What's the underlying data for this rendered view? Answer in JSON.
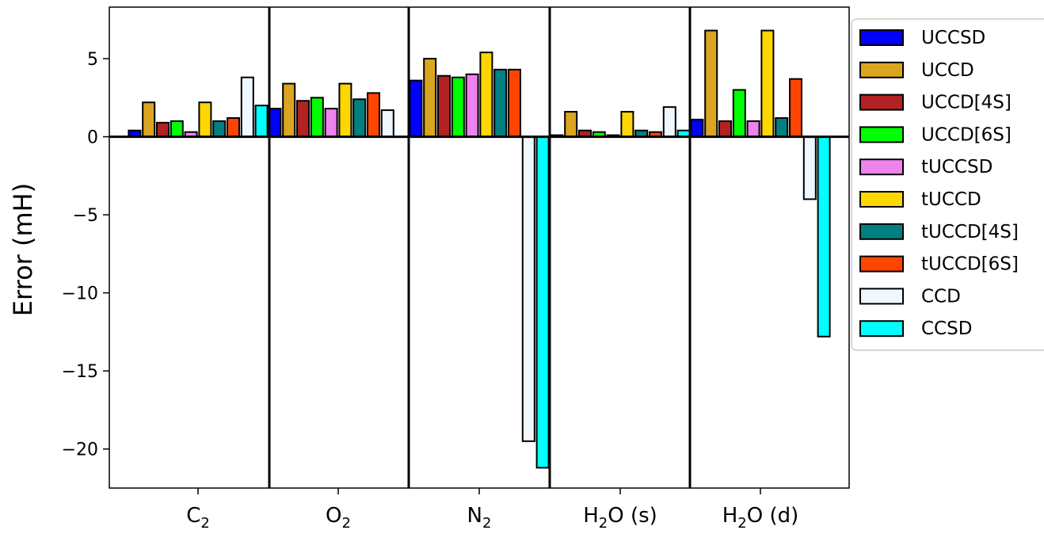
{
  "chart_data": {
    "type": "bar",
    "ylabel": "Error (mH)",
    "xlabel": "",
    "ylim": [
      -22.5,
      8.3
    ],
    "yticks": [
      5,
      0,
      -5,
      -10,
      -15,
      -20
    ],
    "ytick_labels": [
      "5",
      "0",
      "−5",
      "−10",
      "−15",
      "−20"
    ],
    "categories": [
      {
        "base": "C",
        "sub": "2",
        "suffix": ""
      },
      {
        "base": "O",
        "sub": "2",
        "suffix": ""
      },
      {
        "base": "N",
        "sub": "2",
        "suffix": ""
      },
      {
        "base": "H",
        "sub": "2",
        "suffix": "O (s)"
      },
      {
        "base": "H",
        "sub": "2",
        "suffix": "O (d)"
      }
    ],
    "series": [
      {
        "name": "UCCSD",
        "color": "#0000ff",
        "values": [
          0.4,
          1.8,
          3.6,
          0.1,
          1.1
        ]
      },
      {
        "name": "UCCD",
        "color": "#daa520",
        "values": [
          2.2,
          3.4,
          5.0,
          1.6,
          6.8
        ]
      },
      {
        "name": "UCCD[4S]",
        "color": "#b22222",
        "values": [
          0.9,
          2.3,
          3.9,
          0.4,
          1.0
        ]
      },
      {
        "name": "UCCD[6S]",
        "color": "#00ff00",
        "values": [
          1.0,
          2.5,
          3.8,
          0.3,
          3.0
        ]
      },
      {
        "name": "tUCCSD",
        "color": "#ee82ee",
        "values": [
          0.3,
          1.8,
          4.0,
          0.1,
          1.0
        ]
      },
      {
        "name": "tUCCD",
        "color": "#ffd700",
        "values": [
          2.2,
          3.4,
          5.4,
          1.6,
          6.8
        ]
      },
      {
        "name": "tUCCD[4S]",
        "color": "#008080",
        "values": [
          1.0,
          2.4,
          4.3,
          0.4,
          1.2
        ]
      },
      {
        "name": "tUCCD[6S]",
        "color": "#ff4500",
        "values": [
          1.2,
          2.8,
          4.3,
          0.3,
          3.7
        ]
      },
      {
        "name": "CCD",
        "color": "#f0f8ff",
        "values": [
          3.8,
          1.7,
          -19.5,
          1.9,
          -4.0
        ]
      },
      {
        "name": "CCSD",
        "color": "#00ffff",
        "values": [
          2.0,
          0.0,
          -21.2,
          0.4,
          -12.8
        ]
      }
    ],
    "legend_position": "right",
    "grid": false
  }
}
